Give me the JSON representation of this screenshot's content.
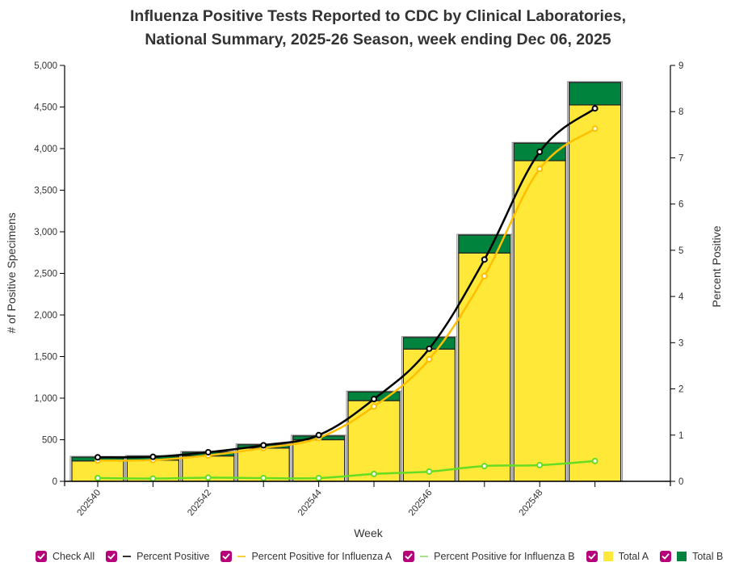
{
  "chart_data": {
    "type": "bar",
    "title_lines": [
      "Influenza Positive Tests Reported to CDC by Clinical Laboratories,",
      "National Summary, 2025-26 Season, week ending Dec 06, 2025"
    ],
    "xlabel": "Week",
    "ylabel": "# of Positive Specimens",
    "y2label": "Percent Positive",
    "ylim": [
      0,
      5000
    ],
    "y2lim": [
      0,
      9
    ],
    "yticks": [
      "0",
      "500",
      "1,000",
      "1,500",
      "2,000",
      "2,500",
      "3,000",
      "3,500",
      "4,000",
      "4,500",
      "5,000"
    ],
    "y2ticks": [
      "0",
      "1",
      "2",
      "3",
      "4",
      "5",
      "6",
      "7",
      "8",
      "9"
    ],
    "categories": [
      "202540",
      "202541",
      "202542",
      "202543",
      "202544",
      "202545",
      "202546",
      "202547",
      "202548",
      "202549"
    ],
    "xtick_labels_shown": [
      "202540",
      "202542",
      "202544",
      "202546",
      "202548"
    ],
    "grid": false,
    "legend_position": "bottom",
    "series": [
      {
        "name": "Total A",
        "type": "stacked-bar",
        "axis": "left",
        "color": "#ffe838",
        "values": [
          245,
          255,
          305,
          400,
          500,
          970,
          1590,
          2745,
          3855,
          4525
        ]
      },
      {
        "name": "Total B",
        "type": "stacked-bar",
        "axis": "left",
        "color": "#00843d",
        "values": [
          45,
          45,
          45,
          40,
          45,
          105,
          140,
          215,
          210,
          270
        ]
      },
      {
        "name": "Percent Positive",
        "type": "line",
        "axis": "right",
        "color": "#000000",
        "values": [
          0.52,
          0.53,
          0.63,
          0.78,
          1.0,
          1.78,
          2.87,
          4.8,
          7.13,
          8.07
        ]
      },
      {
        "name": "Percent Positive for Influenza A",
        "type": "line",
        "axis": "right",
        "color": "#ffbf00",
        "values": [
          0.45,
          0.46,
          0.56,
          0.72,
          0.94,
          1.62,
          2.64,
          4.44,
          6.76,
          7.63
        ]
      },
      {
        "name": "Percent Positive for Influenza B",
        "type": "line",
        "axis": "right",
        "color": "#66dd22",
        "values": [
          0.07,
          0.06,
          0.08,
          0.07,
          0.07,
          0.16,
          0.21,
          0.33,
          0.35,
          0.44
        ]
      }
    ]
  },
  "legend": {
    "check_all": "Check All",
    "items": [
      {
        "label": "Percent Positive",
        "swatch": "line",
        "color": "#333333",
        "checked": true
      },
      {
        "label": "Percent Positive for Influenza A",
        "swatch": "line",
        "color": "#ffd23f",
        "checked": true
      },
      {
        "label": "Percent Positive for Influenza B",
        "swatch": "line",
        "color": "#a8e08a",
        "checked": true
      },
      {
        "label": "Total A",
        "swatch": "box",
        "color": "#ffe838",
        "checked": true
      },
      {
        "label": "Total B",
        "swatch": "box",
        "color": "#00843d",
        "checked": true
      }
    ],
    "checkbox_color": "#b5007a"
  }
}
